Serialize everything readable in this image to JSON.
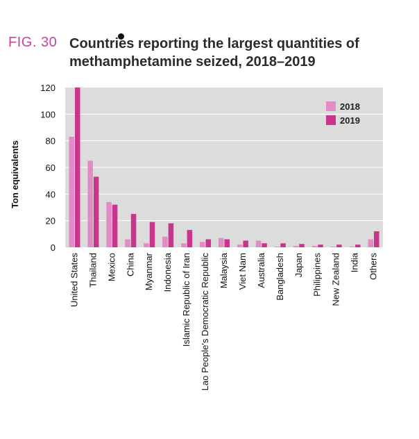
{
  "figure": {
    "label": "FIG. 30",
    "title": "Countries reporting the largest quantities of methamphetamine seized, 2018–2019"
  },
  "colors": {
    "s2018": "#e38bc4",
    "s2019": "#c8358d",
    "plot_bg": "#dcdcdc",
    "accent": "#c2479a"
  },
  "chart_data": {
    "type": "bar",
    "title": "Countries reporting the largest quantities of methamphetamine seized, 2018–2019",
    "xlabel": "",
    "ylabel": "Ton equivalents",
    "ylim": [
      0,
      120
    ],
    "yticks": [
      0,
      20,
      40,
      60,
      80,
      100,
      120
    ],
    "grid": true,
    "legend": "top-right",
    "categories": [
      "United States",
      "Thailand",
      "Mexico",
      "China",
      "Myanmar",
      "Indonesia",
      "Islamic Republic of Iran",
      "Lao People's Democratic Republic",
      "Malaysia",
      "Viet Nam",
      "Australia",
      "Bangladesh",
      "Japan",
      "Philippines",
      "New Zealand",
      "India",
      "Others"
    ],
    "series": [
      {
        "name": "2018",
        "values": [
          83,
          65,
          34,
          6,
          3,
          8,
          3,
          4,
          7,
          2,
          5,
          0.5,
          1,
          1,
          0.5,
          0.5,
          6
        ]
      },
      {
        "name": "2019",
        "values": [
          120,
          53,
          32,
          25,
          19,
          18,
          13,
          6,
          6,
          5,
          3,
          3,
          2.5,
          2,
          2,
          2,
          12
        ]
      }
    ]
  }
}
